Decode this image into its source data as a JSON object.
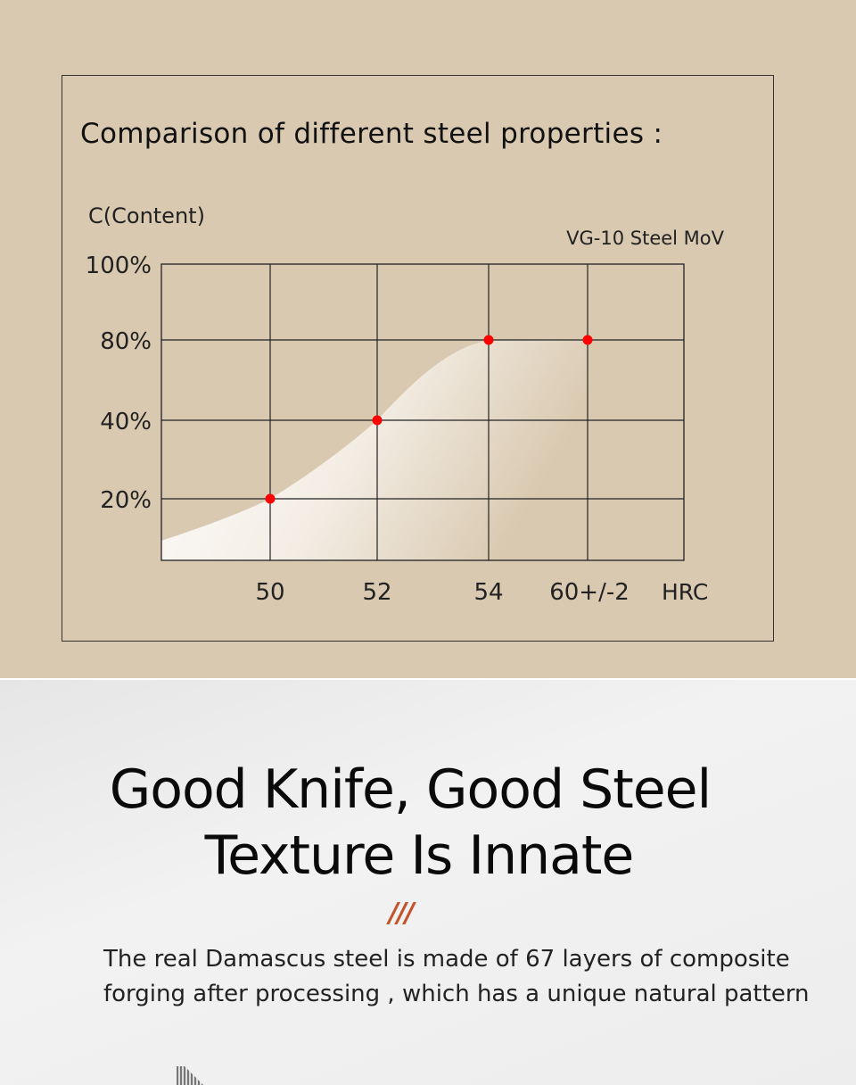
{
  "chart_data": {
    "type": "area",
    "title": "Comparison of different steel properties :",
    "ylabel": "C(Content)",
    "xlabel": "HRC",
    "annotation": "VG-10 Steel MoV",
    "categories": [
      "50",
      "52",
      "54",
      "60+/-2"
    ],
    "y_ticks": [
      "100%",
      "80%",
      "40%",
      "20%"
    ],
    "values": [
      20,
      40,
      80,
      80
    ],
    "point_color": "#ff0000",
    "grid": true
  },
  "headline": {
    "line1": "Good Knife, Good Steel",
    "line2": "Texture Is Innate"
  },
  "divider": "///",
  "description": {
    "line1": "The real Damascus steel is made of 67 layers of composite",
    "line2": "forging after processing , which has a unique natural pattern"
  }
}
